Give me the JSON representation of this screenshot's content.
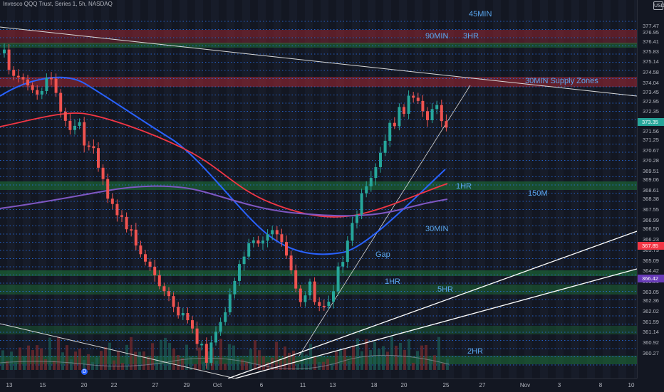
{
  "header": {
    "title": "Invesco QQQ Trust, Series 1, 5h, NASDAQ"
  },
  "currency": "USD",
  "price_axis": {
    "labels": [
      "377.47",
      "376.95",
      "376.41",
      "375.83",
      "375.14",
      "374.58",
      "374.04",
      "373.45",
      "372.95",
      "372.35",
      "371.81",
      "371.56",
      "371.25",
      "370.67",
      "370.28",
      "369.51",
      "369.06",
      "368.61",
      "368.38",
      "367.55",
      "366.99",
      "366.50",
      "366.23",
      "365.73",
      "365.09",
      "364.42",
      "363.90",
      "363.05",
      "362.36",
      "362.02",
      "361.59",
      "361.14",
      "360.92",
      "360.27"
    ],
    "current_price": "373.35",
    "red_badge": "367.85",
    "purple_badge": "366.42"
  },
  "time_axis": {
    "labels": [
      "13",
      "15",
      "20",
      "22",
      "27",
      "29",
      "Oct",
      "6",
      "11",
      "13",
      "18",
      "20",
      "25",
      "27",
      "Nov",
      "3",
      "8",
      "10"
    ]
  },
  "zone_labels": [
    "45MIN",
    "90MIN",
    "3HR",
    "30MIN Supply Zones",
    "1HR",
    "150M",
    "30MIN",
    "Gap",
    "1HR",
    "5HR",
    "2HR"
  ],
  "colors": {
    "background": "#131722",
    "up": "#26a69a",
    "down": "#ef5350",
    "dots": "#2979ff",
    "label": "#5aa7f0",
    "ma_blue": "#2962ff",
    "ma_red": "#f23645",
    "ma_purple": "#7e57c2"
  },
  "icons": {
    "source_marker": "D"
  }
}
